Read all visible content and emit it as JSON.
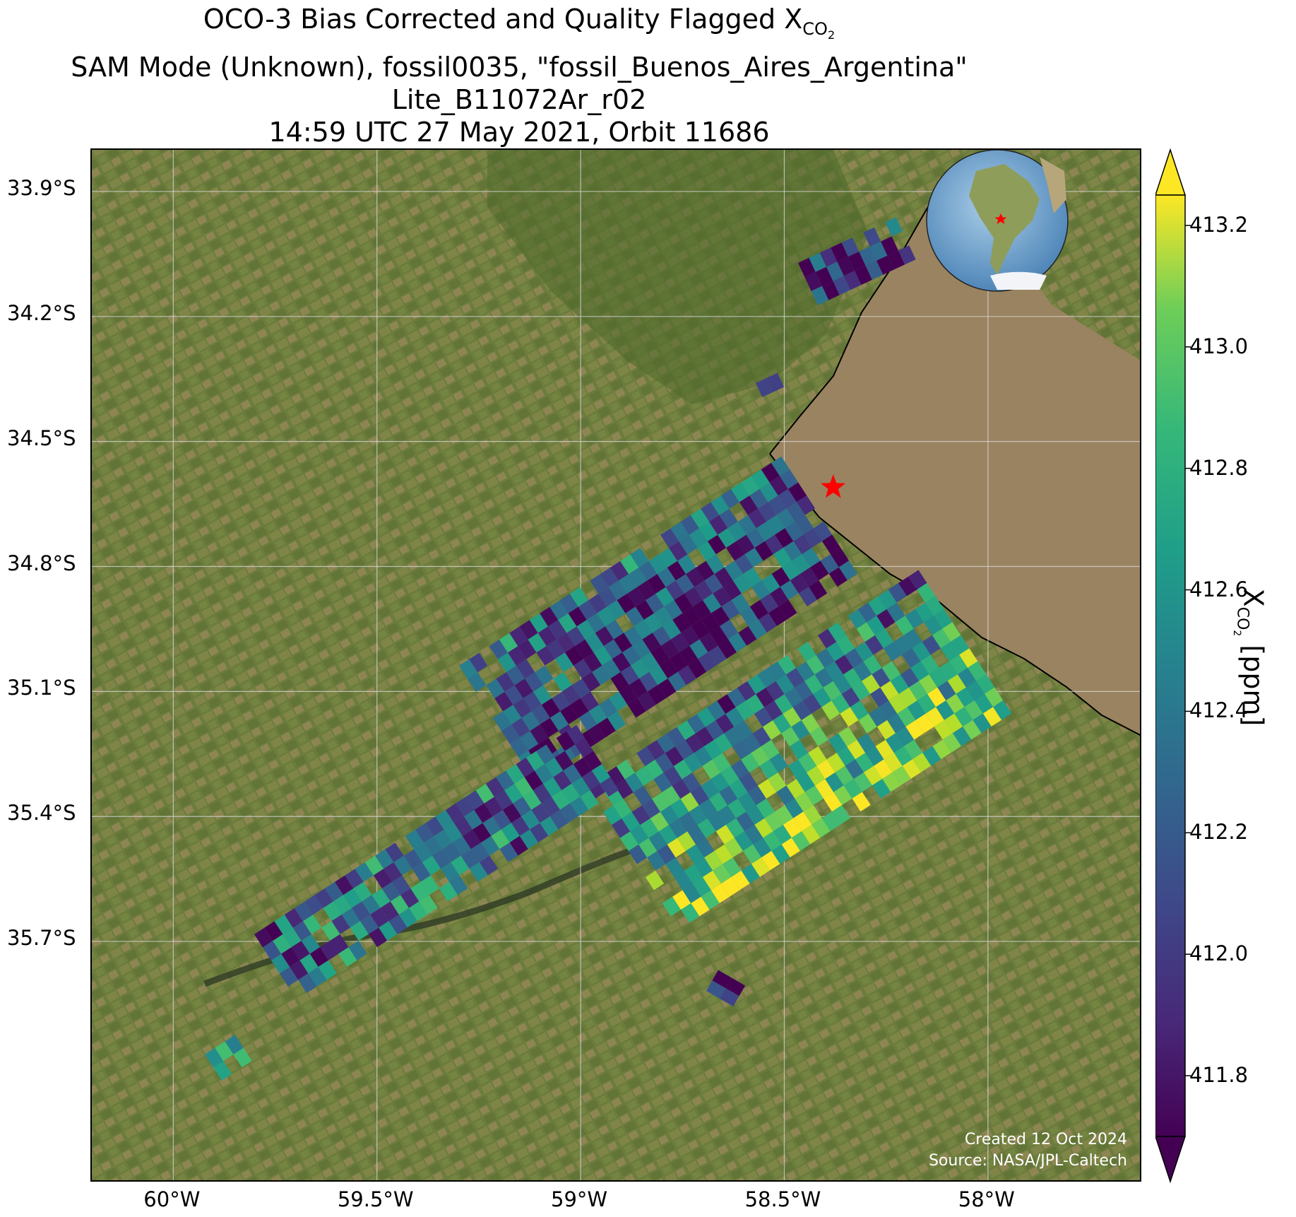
{
  "title": {
    "line1_prefix": "OCO-3 Bias Corrected and Quality Flagged X",
    "line1_sub": "CO",
    "line1_sub2": "2",
    "line2": "SAM Mode (Unknown), fossil0035, \"fossil_Buenos_Aires_Argentina\"",
    "line3": "Lite_B11072Ar_r02",
    "line4": "14:59 UTC 27 May 2021, Orbit 11686"
  },
  "map": {
    "lat_ticks": [
      "33.9°S",
      "34.2°S",
      "34.5°S",
      "34.8°S",
      "35.1°S",
      "35.4°S",
      "35.7°S"
    ],
    "lon_ticks": [
      "60°W",
      "59.5°W",
      "59°W",
      "58.5°W",
      "58°W"
    ],
    "extent": {
      "lon_min": -60.2,
      "lon_max": -57.62,
      "lat_max": -33.8,
      "lat_min": -36.28
    },
    "target": {
      "name": "fossil_Buenos_Aires_Argentina",
      "lon": -58.38,
      "lat": -34.61,
      "marker": "red-star"
    },
    "inset_globe": {
      "description_icon": "globe-icon",
      "marker": "red-star"
    },
    "credit_line1": "Created 12 Oct 2024",
    "credit_line2": "Source: NASA/JPL-Caltech"
  },
  "colorbar": {
    "colormap": "viridis",
    "min": 411.7,
    "max": 413.25,
    "extend": "both",
    "tick_labels": [
      "411.8",
      "412.0",
      "412.2",
      "412.4",
      "412.6",
      "412.8",
      "413.0",
      "413.2"
    ],
    "tick_values": [
      411.8,
      412.0,
      412.2,
      412.4,
      412.6,
      412.8,
      413.0,
      413.2
    ],
    "label_prefix": "X",
    "label_sub": "CO",
    "label_sub2": "2",
    "label_suffix": " [ppm]"
  },
  "colors": {
    "land": "#6b7a3c",
    "water": "#9a8360",
    "grid": "#d9d9d9",
    "target_marker": "#ff0000",
    "credit_text": "#ffffff"
  }
}
